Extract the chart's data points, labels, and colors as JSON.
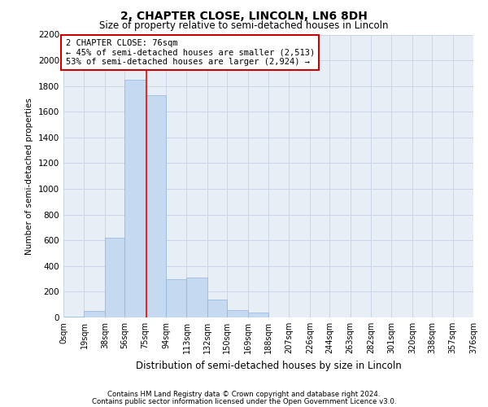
{
  "title": "2, CHAPTER CLOSE, LINCOLN, LN6 8DH",
  "subtitle": "Size of property relative to semi-detached houses in Lincoln",
  "xlabel": "Distribution of semi-detached houses by size in Lincoln",
  "ylabel": "Number of semi-detached properties",
  "footnote1": "Contains HM Land Registry data © Crown copyright and database right 2024.",
  "footnote2": "Contains public sector information licensed under the Open Government Licence v3.0.",
  "annotation_title": "2 CHAPTER CLOSE: 76sqm",
  "annotation_line2": "← 45% of semi-detached houses are smaller (2,513)",
  "annotation_line3": "53% of semi-detached houses are larger (2,924) →",
  "property_size": 76,
  "bins": [
    0,
    19,
    38,
    56,
    75,
    94,
    113,
    132,
    150,
    169,
    188,
    207,
    226,
    244,
    263,
    282,
    301,
    320,
    338,
    357,
    376
  ],
  "bin_labels": [
    "0sqm",
    "19sqm",
    "38sqm",
    "56sqm",
    "75sqm",
    "94sqm",
    "113sqm",
    "132sqm",
    "150sqm",
    "169sqm",
    "188sqm",
    "207sqm",
    "226sqm",
    "244sqm",
    "263sqm",
    "282sqm",
    "301sqm",
    "320sqm",
    "338sqm",
    "357sqm",
    "376sqm"
  ],
  "values": [
    5,
    50,
    620,
    1850,
    1730,
    300,
    310,
    140,
    55,
    40,
    0,
    0,
    0,
    0,
    0,
    0,
    0,
    0,
    0,
    0,
    0
  ],
  "bar_color": "#c5d9f1",
  "bar_edge_color": "#8db4e2",
  "vline_color": "#ff0000",
  "annotation_box_color": "#ffffff",
  "annotation_box_edge": "#cc0000",
  "grid_color": "#ccd5e8",
  "ylim": [
    0,
    2200
  ],
  "yticks": [
    0,
    200,
    400,
    600,
    800,
    1000,
    1200,
    1400,
    1600,
    1800,
    2000,
    2200
  ],
  "background_color": "#e8eef5"
}
